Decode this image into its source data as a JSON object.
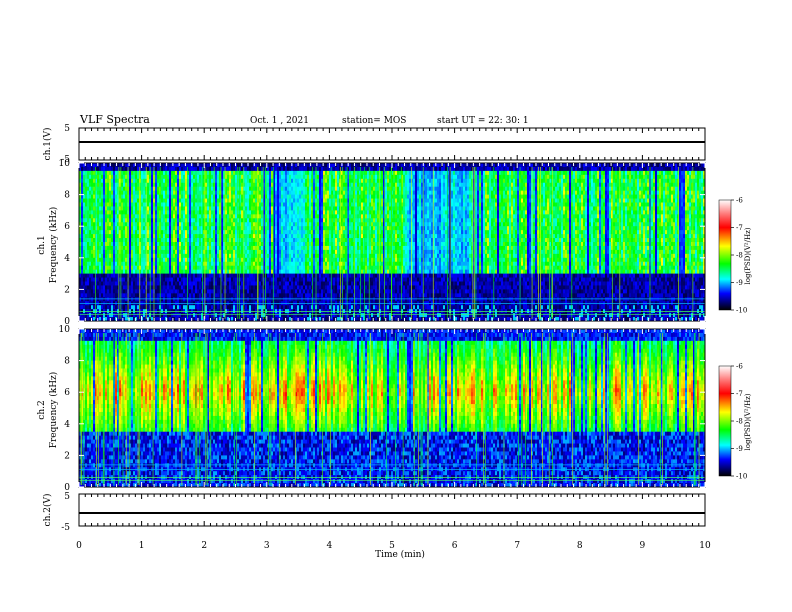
{
  "header": {
    "title": "VLF Spectra",
    "date": "Oct. 1 , 2021",
    "station": "station= MOS",
    "start": "start UT =  22: 30: 1"
  },
  "colors": {
    "colormap": [
      "#ffffff",
      "#ff0000",
      "#ffff00",
      "#00ff00",
      "#00ffff",
      "#0000ff",
      "#000000"
    ],
    "trace": "#000000"
  },
  "chart_data": [
    {
      "type": "line",
      "name": "waveform-ch1",
      "ylabel": "ch.1(V)",
      "ylim": [
        -5,
        5
      ],
      "yticks": [
        "5",
        "-5"
      ],
      "xlim": [
        0,
        10
      ],
      "values_note": "",
      "level": 0
    },
    {
      "type": "heatmap",
      "ylabel": "ch.1\nFrequency (kHz)",
      "ylabel_line1": "ch.1",
      "ylabel_line2": "Frequency (kHz)",
      "xlim": [
        0,
        10
      ],
      "ylim": [
        0,
        10
      ],
      "yticks": [
        "0",
        "2",
        "4",
        "6",
        "8",
        "10"
      ],
      "colorbar": {
        "label": "log(PSD)(V²/Hz)",
        "range": [
          -10,
          -6
        ],
        "ticks": [
          "-6",
          "-7",
          "-8",
          "-9",
          "-10"
        ]
      },
      "band_low_khz": 3,
      "band_high_khz": 9.5,
      "gap_minutes": [
        [
          3.1,
          3.6
        ],
        [
          5.2,
          6.2
        ]
      ]
    },
    {
      "type": "heatmap",
      "ylabel_line1": "ch.2",
      "ylabel_line2": "Frequency (kHz)",
      "xlim": [
        0,
        10
      ],
      "ylim": [
        0,
        10
      ],
      "yticks": [
        "0",
        "2",
        "4",
        "6",
        "8",
        "10"
      ],
      "colorbar": {
        "label": "log(PSD)(V²/Hz)",
        "range": [
          -10,
          -6
        ],
        "ticks": [
          "-6",
          "-7",
          "-8",
          "-9",
          "-10"
        ]
      },
      "band_low_khz": 4,
      "band_high_khz": 8,
      "peak_khz": 6
    },
    {
      "type": "line",
      "name": "waveform-ch2",
      "ylabel": "ch.2(V)",
      "ylim": [
        -5,
        5
      ],
      "yticks": [
        "5",
        "-5"
      ],
      "xlim": [
        0,
        10
      ],
      "level": 0
    }
  ],
  "xaxis": {
    "label": "Time (min)",
    "ticks": [
      "0",
      "1",
      "2",
      "3",
      "4",
      "5",
      "6",
      "7",
      "8",
      "9",
      "10"
    ]
  }
}
